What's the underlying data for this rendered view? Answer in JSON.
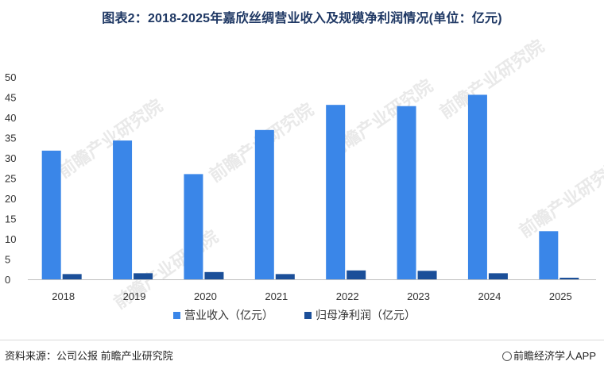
{
  "title": "图表2：2018-2025年嘉欣丝绸营业收入及规模净利润情况(单位：亿元)",
  "chart_data": {
    "type": "bar",
    "title": "图表2：2018-2025年嘉欣丝绸营业收入及规模净利润情况(单位：亿元)",
    "categories": [
      "2018",
      "2019",
      "2020",
      "2021",
      "2022",
      "2023",
      "2024",
      "2025"
    ],
    "series": [
      {
        "name": "营业收入（亿元）",
        "color": "#3a86e8",
        "values": [
          31.8,
          34.3,
          26.0,
          36.9,
          43.1,
          42.8,
          45.6,
          11.9
        ]
      },
      {
        "name": "归母净利润（亿元）",
        "color": "#1b4f99",
        "values": [
          1.3,
          1.5,
          1.8,
          1.3,
          2.2,
          2.1,
          1.5,
          0.4
        ]
      }
    ],
    "yticks": [
      0,
      5,
      10,
      15,
      20,
      25,
      30,
      35,
      40,
      45,
      50
    ],
    "ylim": [
      0,
      50
    ],
    "xlabel": "",
    "ylabel": "",
    "legend_position": "bottom",
    "grid": false
  },
  "watermark": "前瞻产业研究院",
  "footer": {
    "source": "资料来源：公司公报 前瞻产业研究院",
    "brand": "前瞻经济学人APP"
  }
}
